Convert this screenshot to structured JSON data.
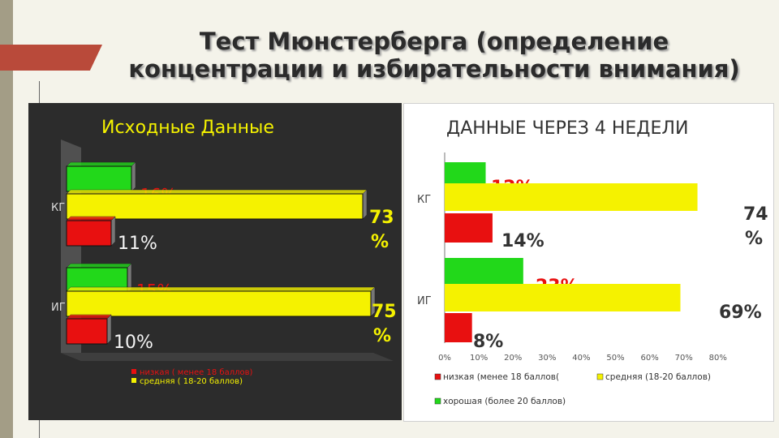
{
  "title_line1": "Тест Мюнстерберга (определение",
  "title_line2": "концентрации и избирательности внимания)",
  "colors": {
    "low": "#e81010",
    "medium": "#f5f200",
    "good": "#22d81a"
  },
  "chart_data": [
    {
      "type": "bar",
      "orientation": "horizontal",
      "title": "Исходные Данные",
      "categories": [
        "КГ",
        "ИГ"
      ],
      "series": [
        {
          "name": "низкая ( менее 18 баллов)",
          "values": [
            11,
            10
          ],
          "labels": [
            "11%",
            "10%"
          ]
        },
        {
          "name": "средняя ( 18-20 баллов)",
          "values": [
            73,
            75
          ],
          "labels": [
            "73 %",
            "75 %"
          ]
        },
        {
          "name": "",
          "values": [
            16,
            15
          ],
          "labels": [
            "16%",
            "15%"
          ]
        }
      ],
      "legend_position": "bottom-left",
      "grid": false,
      "xlim": [
        0,
        80
      ]
    },
    {
      "type": "bar",
      "orientation": "horizontal",
      "title": "ДАННЫЕ ЧЕРЕЗ 4 НЕДЕЛИ",
      "categories": [
        "КГ",
        "ИГ"
      ],
      "series": [
        {
          "name": "низкая (менее 18 баллов(",
          "values": [
            14,
            8
          ],
          "labels": [
            "14%",
            "8%"
          ]
        },
        {
          "name": "средняя (18-20 баллов)",
          "values": [
            74,
            69
          ],
          "labels": [
            "74 %",
            "69%"
          ]
        },
        {
          "name": "хорошая (более 20 баллов)",
          "values": [
            12,
            23
          ],
          "labels": [
            "12%",
            "23%"
          ]
        }
      ],
      "x_ticks": [
        "0%",
        "10%",
        "20%",
        "30%",
        "40%",
        "50%",
        "60%",
        "70%",
        "80%"
      ],
      "xlim": [
        0,
        80
      ],
      "legend_position": "bottom",
      "grid": false
    }
  ]
}
